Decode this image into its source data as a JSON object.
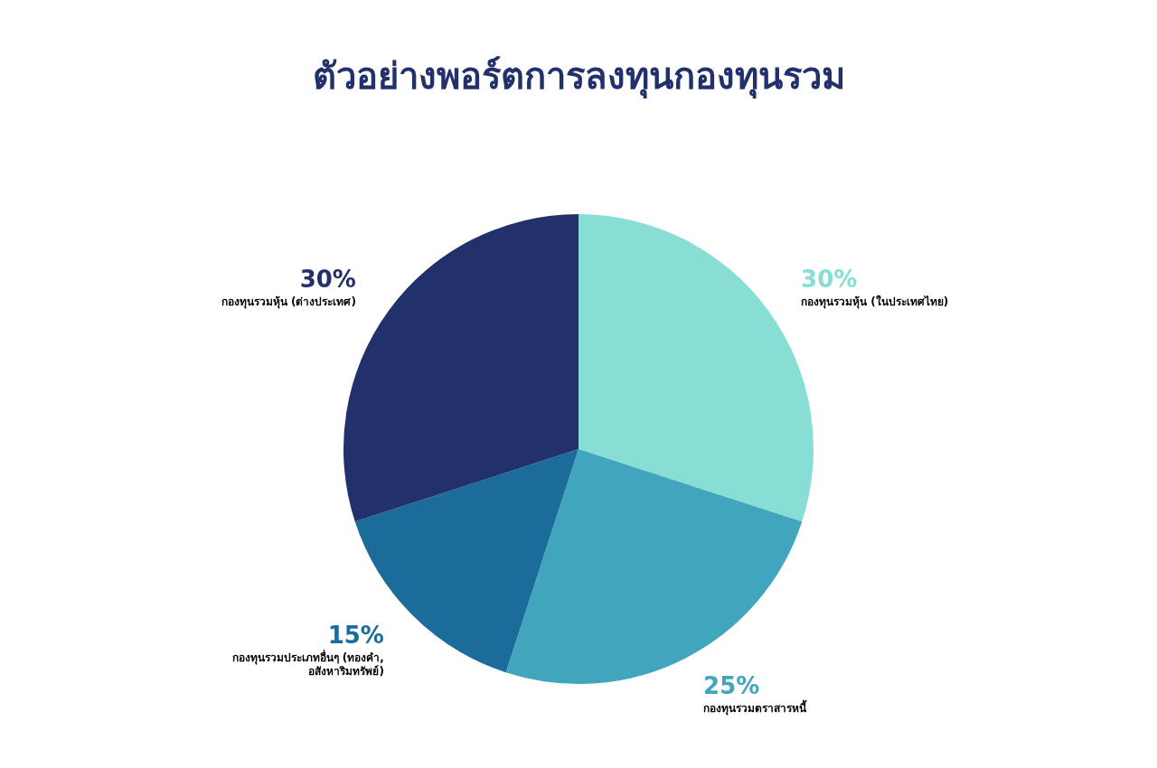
{
  "chart_data": {
    "type": "pie",
    "title": "ตัวอย่างพอร์ตการลงทุนกองทุนรวม",
    "categories": [
      "กองทุนรวมหุ้น (ในประเทศไทย)",
      "กองทุนรวมตราสารหนี้",
      "กองทุนรวมประเภทอื่นๆ (ทองคำ, อสังหาริมทรัพย์)",
      "กองทุนรวมหุ้น (ต่างประเทศ)"
    ],
    "values": [
      30,
      25,
      15,
      30
    ],
    "colors": [
      "#88ddd5",
      "#41a5be",
      "#1b6b9b",
      "#22316b"
    ],
    "value_labels": [
      "30%",
      "25%",
      "15%",
      "30%"
    ],
    "legend": false
  }
}
